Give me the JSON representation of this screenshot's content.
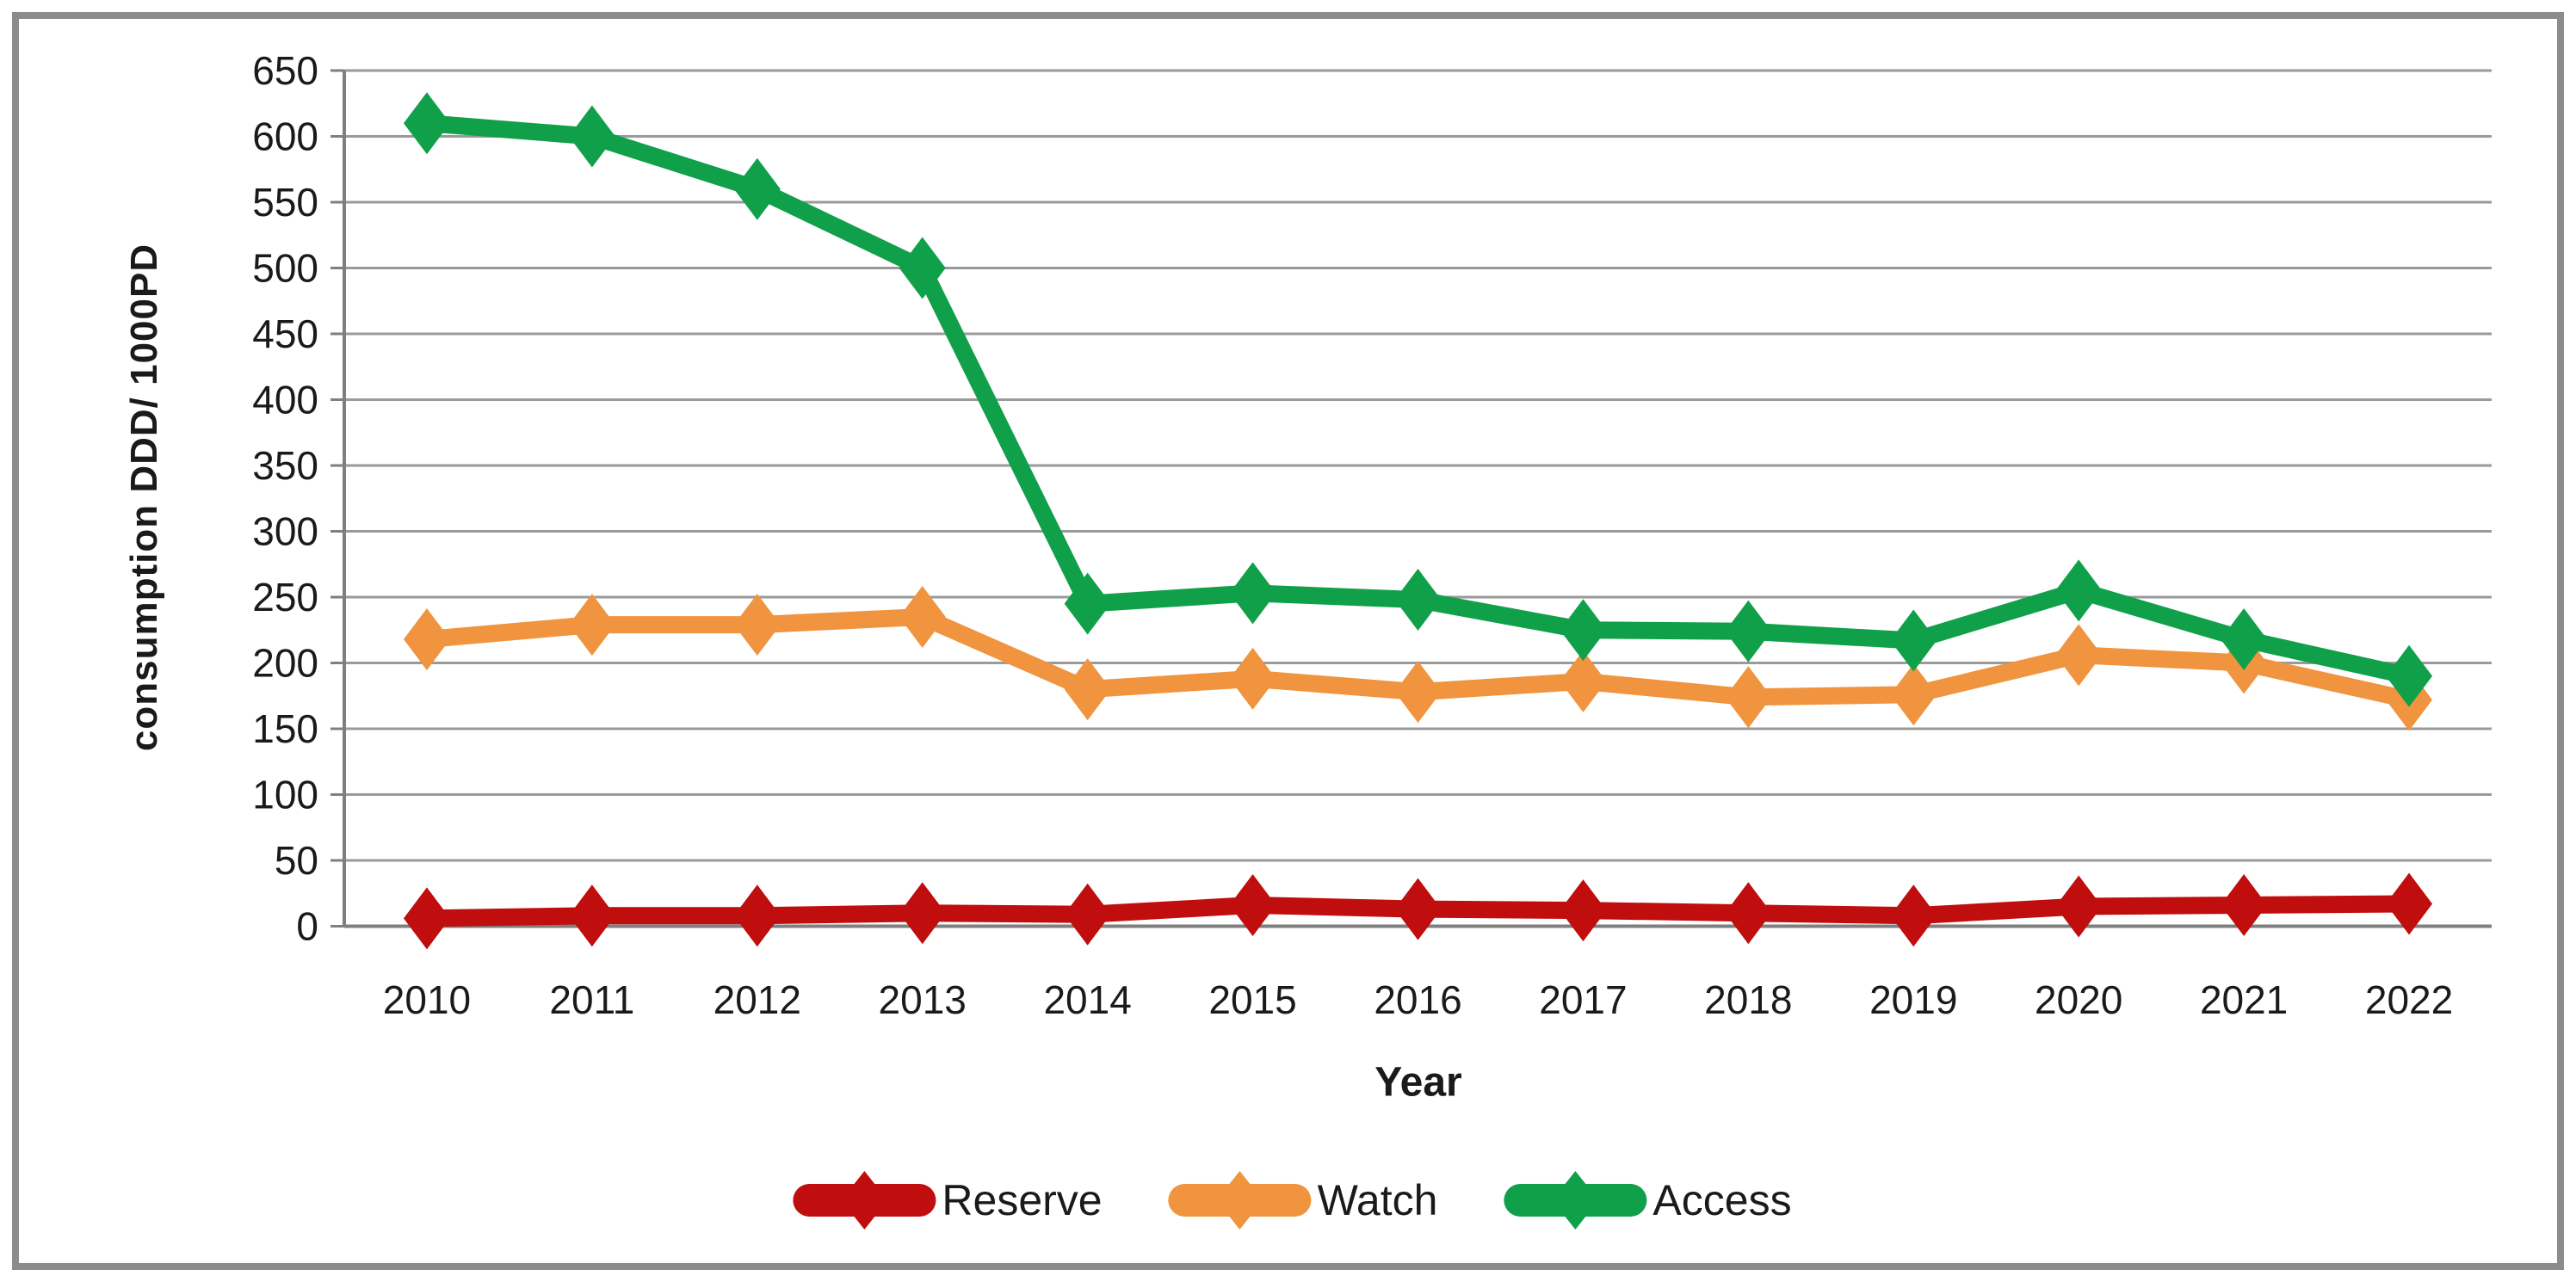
{
  "chart_data": {
    "type": "line",
    "title": "",
    "xlabel": "Year",
    "ylabel": "consumption DDD/ 1000PD",
    "x": [
      "2010",
      "2011",
      "2012",
      "2013",
      "2014",
      "2015",
      "2016",
      "2017",
      "2018",
      "2019",
      "2020",
      "2021",
      "2022"
    ],
    "yticks": [
      0,
      50,
      100,
      150,
      200,
      250,
      300,
      350,
      400,
      450,
      500,
      550,
      600,
      650
    ],
    "ylim": [
      0,
      650
    ],
    "grid": true,
    "legend_position": "bottom",
    "marker": "diamond",
    "series": [
      {
        "name": "Reserve",
        "color": "#C00D0D",
        "values": [
          6,
          8,
          8,
          10,
          9,
          16,
          13,
          12,
          10,
          8,
          15,
          16,
          17
        ]
      },
      {
        "name": "Watch",
        "color": "#F0943F",
        "values": [
          218,
          229,
          229,
          235,
          180,
          188,
          178,
          186,
          174,
          176,
          206,
          200,
          172
        ]
      },
      {
        "name": "Access",
        "color": "#10A04A",
        "values": [
          610,
          600,
          560,
          500,
          245,
          253,
          248,
          225,
          224,
          217,
          255,
          218,
          190
        ]
      }
    ]
  },
  "style": {
    "grid_color": "#9a9a9a",
    "axis_color": "#7f7f7f",
    "text_color": "#1a1a1a",
    "frame_color": "#8c8c8c",
    "background": "#ffffff"
  }
}
